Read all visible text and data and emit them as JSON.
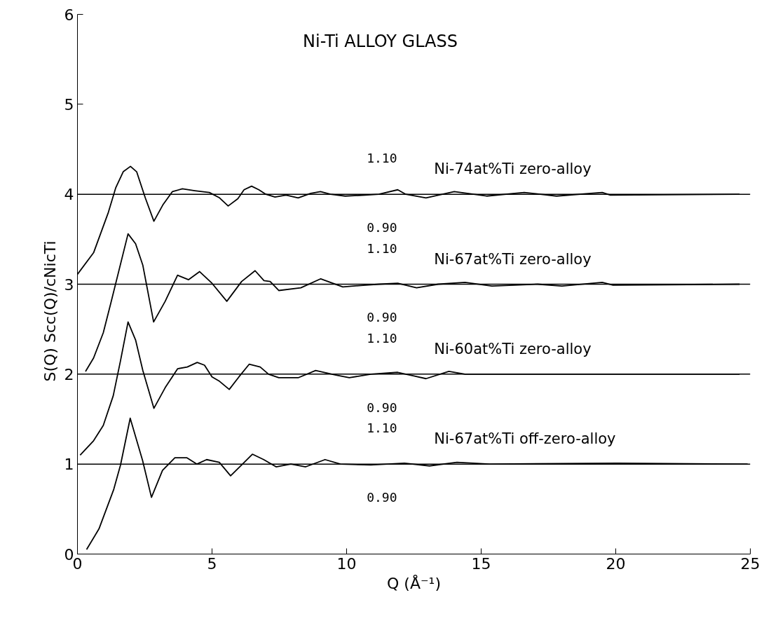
{
  "chart_data": {
    "type": "line",
    "title": "Ni-Ti ALLOY GLASS",
    "xlabel": "Q (Å⁻¹)",
    "ylabel": "S(Q)            Scc(Q)/cNicTi",
    "xlim": [
      0,
      25
    ],
    "xticks": [
      0,
      5,
      10,
      15,
      20,
      25
    ],
    "ylim": [
      0,
      6
    ],
    "yticks": [
      0,
      1,
      2,
      3,
      4,
      5,
      6
    ],
    "grid": false,
    "marker": "none",
    "line_style": "solid",
    "ref_lines": [
      {
        "axis": "y",
        "value": 1,
        "color": "#000000"
      },
      {
        "axis": "y",
        "value": 2,
        "color": "#000000"
      },
      {
        "axis": "y",
        "value": 3,
        "color": "#000000"
      },
      {
        "axis": "y",
        "value": 4,
        "color": "#000000"
      }
    ],
    "annotations": [
      "1.10",
      "0.90",
      "1.10",
      "0.90",
      "1.10",
      "0.90",
      "1.10",
      "0.90"
    ],
    "series": [
      {
        "name": "Ni-74at%Ti  zero-alloy",
        "color": "#000000",
        "x": [
          0,
          0.6,
          1.15,
          1.42,
          1.7,
          1.97,
          2.2,
          2.52,
          2.84,
          3.17,
          3.53,
          3.9,
          4.36,
          4.9,
          5.28,
          5.6,
          5.96,
          6.19,
          6.47,
          6.74,
          7.0,
          7.34,
          7.75,
          8.2,
          8.67,
          9.03,
          9.4,
          9.95,
          10.7,
          11.2,
          11.9,
          12.2,
          12.95,
          14.0,
          15.2,
          16.6,
          17.8,
          19.5,
          19.8,
          24.6
        ],
        "values": [
          3.11,
          3.35,
          3.8,
          4.07,
          4.25,
          4.31,
          4.25,
          3.96,
          3.7,
          3.88,
          4.03,
          4.06,
          4.04,
          4.02,
          3.96,
          3.87,
          3.95,
          4.05,
          4.09,
          4.05,
          4.0,
          3.97,
          3.99,
          3.96,
          4.01,
          4.03,
          4.0,
          3.98,
          3.99,
          4.0,
          4.05,
          4.0,
          3.96,
          4.03,
          3.98,
          4.02,
          3.98,
          4.02,
          3.99,
          4.0
        ]
      },
      {
        "name": "Ni-67at%Ti  zero-alloy",
        "color": "#000000",
        "x": [
          0.3,
          0.6,
          0.96,
          1.24,
          1.88,
          2.16,
          2.43,
          2.83,
          3.26,
          3.72,
          4.13,
          4.54,
          5.0,
          5.55,
          6.1,
          6.6,
          6.93,
          7.16,
          7.48,
          8.3,
          9.04,
          9.86,
          10.7,
          11.2,
          11.9,
          12.6,
          13.4,
          14.4,
          15.4,
          17.1,
          18.0,
          19.5,
          19.9,
          24.6
        ],
        "values": [
          2.03,
          2.18,
          2.46,
          2.79,
          3.56,
          3.45,
          3.21,
          2.58,
          2.81,
          3.1,
          3.05,
          3.14,
          3.01,
          2.81,
          3.03,
          3.15,
          3.04,
          3.03,
          2.93,
          2.96,
          3.06,
          2.97,
          2.99,
          3.0,
          3.01,
          2.96,
          3.0,
          3.02,
          2.98,
          3.0,
          2.98,
          3.02,
          2.99,
          3.0
        ]
      },
      {
        "name": "Ni-60at%Ti  zero-alloy",
        "color": "#000000",
        "x": [
          0.1,
          0.6,
          0.96,
          1.33,
          1.6,
          1.88,
          2.16,
          2.43,
          2.84,
          3.26,
          3.72,
          4.08,
          4.45,
          4.72,
          5.0,
          5.28,
          5.64,
          6.0,
          6.38,
          6.79,
          7.1,
          7.48,
          8.2,
          8.85,
          9.6,
          10.1,
          10.9,
          11.9,
          12.5,
          12.95,
          13.8,
          14.4,
          17.4,
          24.6
        ],
        "values": [
          1.1,
          1.26,
          1.43,
          1.76,
          2.15,
          2.58,
          2.38,
          2.04,
          1.62,
          1.85,
          2.06,
          2.08,
          2.13,
          2.1,
          1.97,
          1.92,
          1.83,
          1.97,
          2.11,
          2.08,
          2.0,
          1.96,
          1.96,
          2.04,
          1.99,
          1.96,
          2.0,
          2.02,
          1.98,
          1.95,
          2.03,
          2.0,
          2.0,
          2.0
        ]
      },
      {
        "name": "Ni-67at%Ti  off-zero-alloy",
        "color": "#000000",
        "x": [
          0.34,
          0.8,
          1.35,
          1.6,
          1.96,
          2.42,
          2.75,
          3.16,
          3.62,
          4.07,
          4.44,
          4.8,
          5.27,
          5.69,
          6.1,
          6.5,
          6.92,
          7.38,
          7.93,
          8.48,
          9.2,
          9.77,
          10.9,
          12.15,
          13.08,
          14.1,
          15.3,
          20.05,
          24.9
        ],
        "values": [
          0.05,
          0.28,
          0.72,
          0.99,
          1.51,
          1.04,
          0.63,
          0.93,
          1.07,
          1.07,
          1.0,
          1.05,
          1.02,
          0.87,
          0.99,
          1.11,
          1.05,
          0.97,
          1.0,
          0.97,
          1.05,
          1.0,
          0.99,
          1.01,
          0.98,
          1.02,
          1.0,
          1.01,
          1.0
        ]
      }
    ]
  }
}
